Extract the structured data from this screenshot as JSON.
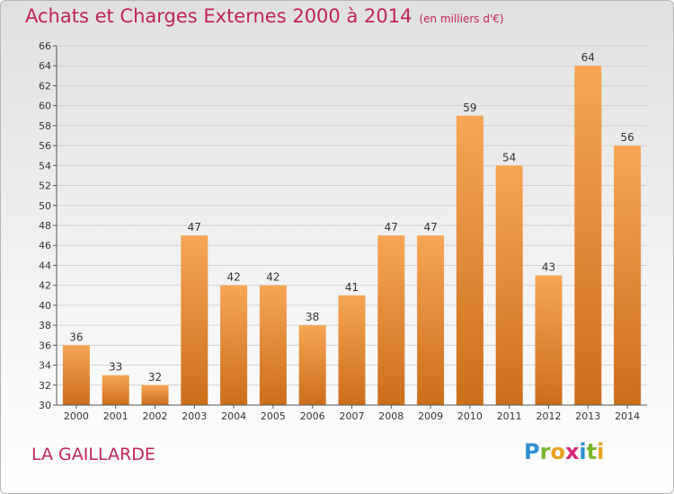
{
  "chart_data": {
    "type": "bar",
    "title": "Achats et Charges Externes 2000 à 2014",
    "subtitle": "(en milliers d'€)",
    "categories": [
      "2000",
      "2001",
      "2002",
      "2003",
      "2004",
      "2005",
      "2006",
      "2007",
      "2008",
      "2009",
      "2010",
      "2011",
      "2012",
      "2013",
      "2014"
    ],
    "values": [
      36,
      33,
      32,
      47,
      42,
      42,
      38,
      41,
      47,
      47,
      59,
      54,
      43,
      64,
      56
    ],
    "data_labels": [
      "36",
      "33",
      "32",
      "47",
      "42",
      "42",
      "38",
      "41",
      "47",
      "47",
      "59",
      "54",
      "43",
      "64",
      "56"
    ],
    "ylim": [
      30,
      66
    ],
    "yticks": [
      30,
      32,
      34,
      36,
      38,
      40,
      42,
      44,
      46,
      48,
      50,
      52,
      54,
      56,
      58,
      60,
      62,
      64,
      66
    ],
    "grid": true,
    "colors": {
      "bar_top": "#f6a655",
      "bar_bottom": "#cc6e1a",
      "title": "#c0245a"
    }
  },
  "place_name": "LA GAILLARDE",
  "logo": {
    "letters": [
      {
        "ch": "P",
        "color": "#2f8fd3"
      },
      {
        "ch": "r",
        "color": "#7ab52a"
      },
      {
        "ch": "o",
        "color": "#e8a21d"
      },
      {
        "ch": "x",
        "color": "#d8267a"
      },
      {
        "ch": "i",
        "color": "#2f8fd3"
      },
      {
        "ch": "t",
        "color": "#7ab52a"
      },
      {
        "ch": "i",
        "color": "#e8a21d"
      }
    ]
  }
}
